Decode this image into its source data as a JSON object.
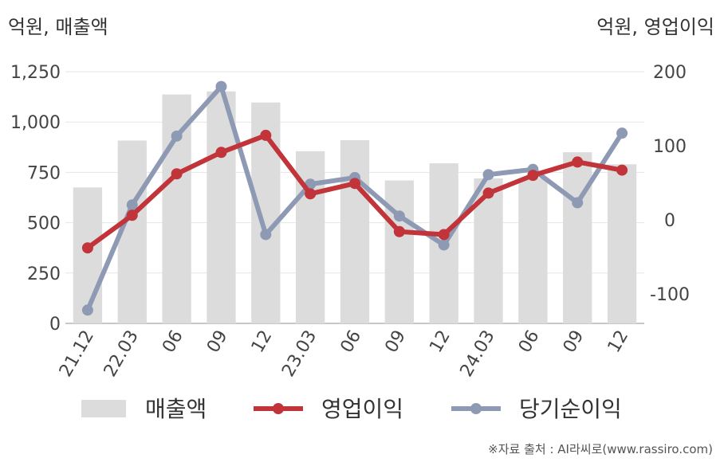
{
  "units": {
    "left": "억원, 매출액",
    "right": "억원, 영업이익"
  },
  "source": "※자료 출처 : AI라씨로(www.rassiro.com)",
  "chart_data": {
    "type": "bar+line",
    "categories": [
      "21.12",
      "22.03",
      "06",
      "09",
      "12",
      "23.03",
      "06",
      "09",
      "12",
      "24.03",
      "06",
      "09",
      "12"
    ],
    "left_axis": {
      "ylim": [
        0,
        1250
      ],
      "ticks": [
        0,
        250,
        500,
        750,
        1000,
        1250
      ],
      "tick_labels": [
        "0",
        "250",
        "500",
        "750",
        "1,000",
        "1,250"
      ]
    },
    "right_axis": {
      "ylim": [
        -140,
        200
      ],
      "ticks": [
        -100,
        0,
        100,
        200
      ],
      "tick_labels": [
        "-100",
        "0",
        "100",
        "200"
      ]
    },
    "series": [
      {
        "name": "매출액",
        "type": "bar",
        "axis": "left",
        "color": "#dcdcdc",
        "values": [
          675,
          908,
          1137,
          1152,
          1097,
          855,
          910,
          710,
          795,
          720,
          720,
          850,
          790
        ]
      },
      {
        "name": "영업이익",
        "type": "line",
        "axis": "right",
        "color": "#c0343a",
        "values": [
          -38,
          6,
          62,
          91,
          114,
          35,
          49,
          -16,
          -20,
          36,
          60,
          78,
          67
        ]
      },
      {
        "name": "당기순이익",
        "type": "line",
        "axis": "right",
        "color": "#8e9ab4",
        "values": [
          -122,
          20,
          113,
          180,
          -20,
          48,
          57,
          5,
          -34,
          61,
          68,
          23,
          117
        ]
      }
    ],
    "grid": true,
    "legend": "bottom"
  }
}
